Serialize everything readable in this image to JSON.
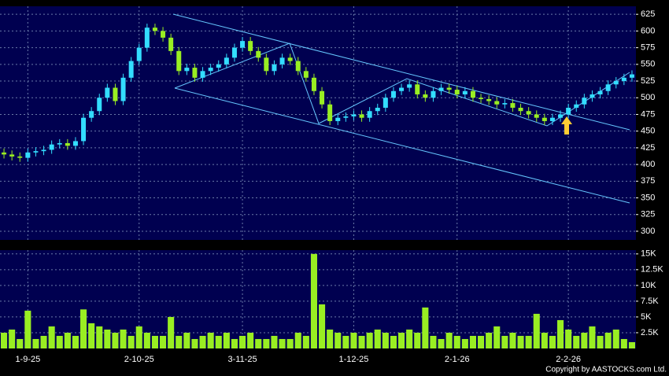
{
  "chart_data": [
    {
      "type": "candlestick",
      "open": [
        418,
        415,
        412,
        410,
        418,
        420,
        422,
        430,
        432,
        428,
        435,
        470,
        480,
        500,
        515,
        495,
        530,
        555,
        575,
        605,
        600,
        590,
        570,
        540,
        545,
        530,
        540,
        545,
        550,
        560,
        575,
        585,
        570,
        560,
        540,
        550,
        560,
        555,
        540,
        530,
        510,
        490,
        465,
        470,
        472,
        475,
        470,
        480,
        485,
        500,
        510,
        515,
        520,
        505,
        500,
        510,
        515,
        512,
        505,
        510,
        500,
        498,
        495,
        490,
        492,
        485,
        480,
        475,
        470,
        465,
        470,
        475,
        485,
        490,
        500,
        505,
        510,
        520,
        525,
        530
      ],
      "high": [
        424,
        421,
        418,
        424,
        426,
        428,
        436,
        438,
        438,
        441,
        476,
        486,
        506,
        521,
        521,
        536,
        561,
        581,
        611,
        611,
        606,
        596,
        576,
        551,
        551,
        546,
        551,
        556,
        566,
        581,
        591,
        591,
        576,
        566,
        556,
        566,
        566,
        561,
        546,
        536,
        516,
        496,
        476,
        478,
        481,
        481,
        486,
        491,
        506,
        516,
        521,
        526,
        526,
        511,
        516,
        521,
        521,
        518,
        516,
        516,
        506,
        504,
        501,
        498,
        498,
        491,
        486,
        481,
        476,
        476,
        481,
        491,
        496,
        506,
        511,
        516,
        526,
        531,
        536,
        541
      ],
      "low": [
        409,
        406,
        404,
        404,
        412,
        414,
        416,
        424,
        422,
        422,
        429,
        464,
        474,
        494,
        489,
        489,
        524,
        549,
        569,
        594,
        584,
        564,
        534,
        534,
        524,
        524,
        534,
        539,
        544,
        554,
        569,
        564,
        554,
        534,
        534,
        544,
        549,
        534,
        524,
        504,
        484,
        459,
        459,
        464,
        466,
        464,
        464,
        474,
        479,
        494,
        504,
        509,
        499,
        494,
        494,
        504,
        506,
        499,
        499,
        494,
        492,
        489,
        484,
        484,
        479,
        474,
        469,
        464,
        459,
        459,
        464,
        469,
        479,
        484,
        494,
        499,
        504,
        514,
        519,
        524
      ],
      "close": [
        415,
        412,
        410,
        418,
        420,
        422,
        430,
        432,
        428,
        435,
        470,
        480,
        500,
        515,
        495,
        530,
        555,
        575,
        605,
        600,
        590,
        570,
        540,
        545,
        530,
        540,
        545,
        550,
        560,
        575,
        585,
        570,
        560,
        540,
        550,
        560,
        555,
        540,
        530,
        510,
        490,
        465,
        470,
        472,
        475,
        470,
        480,
        485,
        500,
        510,
        515,
        520,
        505,
        500,
        510,
        515,
        512,
        505,
        510,
        500,
        498,
        495,
        490,
        492,
        485,
        480,
        475,
        470,
        465,
        470,
        475,
        485,
        490,
        500,
        505,
        510,
        520,
        525,
        530,
        535
      ],
      "up_color": "#33ddff",
      "down_color": "#99ee22",
      "ylim": [
        287,
        637
      ],
      "yticks": [
        300,
        325,
        350,
        375,
        400,
        425,
        450,
        475,
        500,
        525,
        550,
        575,
        600,
        625
      ],
      "grid": true
    },
    {
      "type": "bar",
      "categories": [
        null,
        null,
        null,
        "1-9-25",
        null,
        null,
        null,
        null,
        null,
        null,
        null,
        null,
        null,
        null,
        null,
        null,
        null,
        "2-10-25",
        null,
        null,
        null,
        null,
        null,
        null,
        null,
        null,
        null,
        null,
        null,
        null,
        "3-11-25",
        null,
        null,
        null,
        null,
        null,
        null,
        null,
        null,
        null,
        null,
        null,
        null,
        null,
        "1-12-25",
        null,
        null,
        null,
        null,
        null,
        null,
        null,
        null,
        null,
        null,
        null,
        null,
        "2-1-26",
        null,
        null,
        null,
        null,
        null,
        null,
        null,
        null,
        null,
        null,
        null,
        null,
        null,
        "2-2-26",
        null,
        null,
        null,
        null,
        null,
        null,
        null,
        null
      ],
      "values": [
        2500,
        3000,
        1500,
        6000,
        1500,
        2000,
        3500,
        2000,
        2500,
        2000,
        6200,
        4000,
        3500,
        3000,
        2500,
        3000,
        2000,
        3500,
        2500,
        2000,
        2000,
        5000,
        2000,
        2500,
        1500,
        2000,
        2500,
        2000,
        2500,
        1500,
        2000,
        2500,
        1500,
        1500,
        2000,
        1500,
        1500,
        2500,
        2000,
        15000,
        7000,
        3000,
        2500,
        2000,
        2500,
        2000,
        2500,
        3000,
        2500,
        2000,
        2500,
        3000,
        2500,
        6500,
        2000,
        1500,
        2500,
        2000,
        1500,
        2000,
        2000,
        2500,
        3500,
        2000,
        2500,
        2000,
        2000,
        5500,
        2500,
        2000,
        4500,
        3000,
        2000,
        2500,
        3500,
        2000,
        2500,
        3000,
        1500,
        1000
      ],
      "color": "#99ee22",
      "ylim": [
        0,
        15600
      ],
      "yticks": [
        {
          "value": 2500,
          "label": "2.5K"
        },
        {
          "value": 5000,
          "label": "5K"
        },
        {
          "value": 7500,
          "label": "7.5K"
        },
        {
          "value": 10000,
          "label": "10K"
        },
        {
          "value": 12500,
          "label": "12.5K"
        },
        {
          "value": 15000,
          "label": "15K"
        }
      ],
      "grid": true,
      "note": "Copyright by AASTOCKS.com Ltd."
    }
  ]
}
